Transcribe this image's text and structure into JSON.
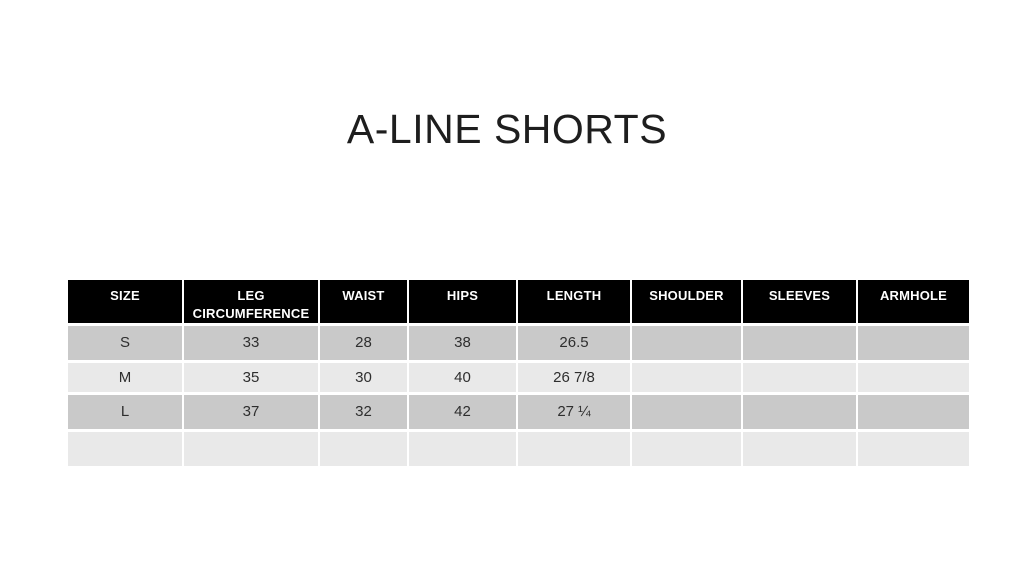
{
  "title": "A-LINE SHORTS",
  "table": {
    "headers": [
      "SIZE",
      "LEG CIRCUMFERENCE",
      "WAIST",
      "HIPS",
      "LENGTH",
      "SHOULDER",
      "SLEEVES",
      "ARMHOLE"
    ],
    "rows": [
      {
        "size": "S",
        "cells": [
          "S",
          "33",
          "28",
          "38",
          "26.5",
          "",
          "",
          ""
        ]
      },
      {
        "size": "M",
        "cells": [
          "M",
          "35",
          "30",
          "40",
          "26 7/8",
          "",
          "",
          ""
        ]
      },
      {
        "size": "L",
        "cells": [
          "L",
          "37",
          "32",
          "42",
          "27 ¼",
          "",
          "",
          ""
        ]
      },
      {
        "size": "",
        "cells": [
          "",
          "",
          "",
          "",
          "",
          "",
          "",
          ""
        ]
      }
    ]
  },
  "colors": {
    "page_bg": "#ffffff",
    "header_bg": "#000000",
    "header_text": "#ffffff",
    "band_dark": "#c9c9c9",
    "band_light": "#e9e9e9",
    "body_text": "#2e2e2e",
    "title_text": "#1e1e1e"
  }
}
